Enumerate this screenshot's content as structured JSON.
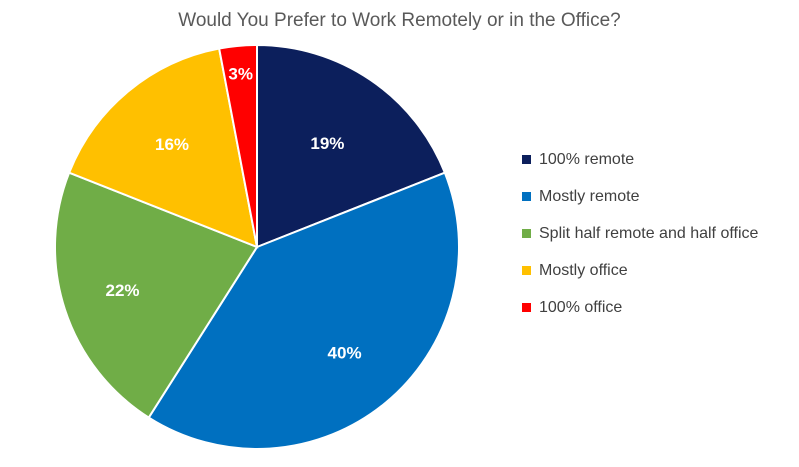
{
  "chart_data": {
    "type": "pie",
    "title": "Would You Prefer to Work Remotely or in the Office?",
    "categories": [
      "100% remote",
      "Mostly remote",
      "Split half remote and half office",
      "Mostly office",
      "100% office"
    ],
    "values": [
      19,
      40,
      22,
      16,
      3
    ],
    "data_labels": [
      "19%",
      "40%",
      "22%",
      "16%",
      "3%"
    ],
    "colors": [
      "#0c1f5c",
      "#0070c0",
      "#70ad47",
      "#ffc000",
      "#ff0000"
    ],
    "legend_position": "right",
    "start_angle": "12 o'clock, clockwise"
  }
}
